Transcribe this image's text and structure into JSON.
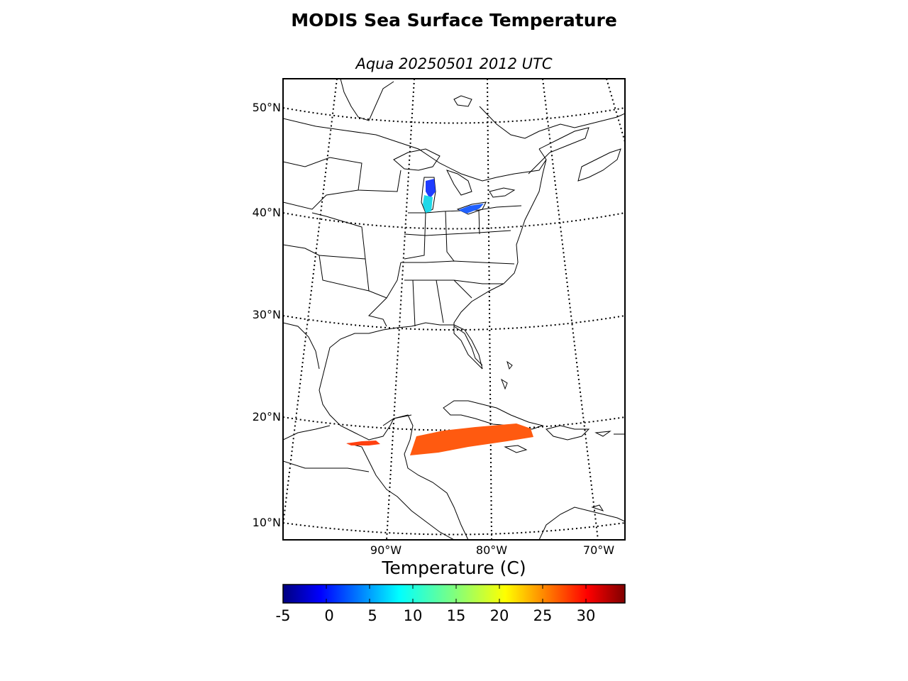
{
  "header": {
    "title": "MODIS Sea Surface Temperature",
    "subtitle": "Aqua 20250501 2012 UTC"
  },
  "map": {
    "lat_labels": [
      "50°N",
      "40°N",
      "30°N",
      "20°N",
      "10°N"
    ],
    "lon_labels": [
      "90°W",
      "80°W",
      "70°W"
    ],
    "sst_colors": {
      "great_lakes_cold": "#1f3cff",
      "great_lakes_mid": "#20d8e8",
      "caribbean_swath": "#ff5a10"
    }
  },
  "colorbar": {
    "title": "Temperature (C)",
    "ticks": [
      "-5",
      "0",
      "5",
      "10",
      "15",
      "20",
      "25",
      "30"
    ],
    "colormap": "jet"
  }
}
